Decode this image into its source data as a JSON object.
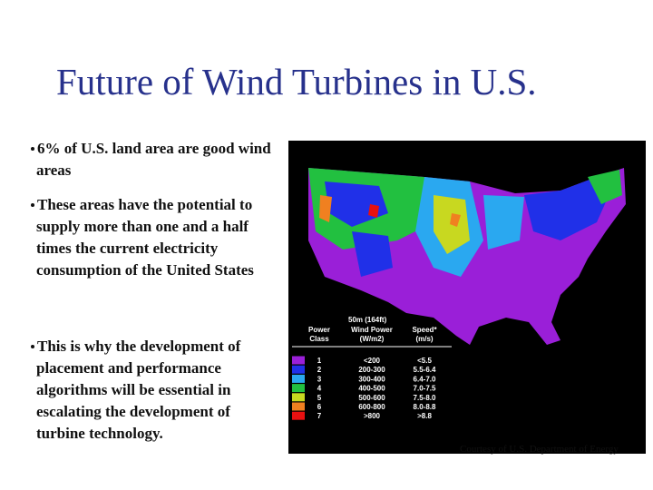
{
  "title": "Future of Wind Turbines in U.S.",
  "bullets": [
    "6% of U.S. land area are good wind areas",
    "These areas have the potential to supply more than one and a half times the current electricity consumption of the United States",
    "This is why the development of placement and performance algorithms will be essential in escalating the development of turbine technology."
  ],
  "map": {
    "legend": {
      "heading": "50m (164ft)",
      "columns": [
        [
          "Power",
          "Class"
        ],
        [
          "Wind Power",
          "(W/m2)"
        ],
        [
          "Speed*",
          "(m/s)"
        ]
      ],
      "rows": [
        {
          "class": "1",
          "power": "<200",
          "speed": "<5.5",
          "color": "#9a1fd8"
        },
        {
          "class": "2",
          "power": "200-300",
          "speed": "5.5-6.4",
          "color": "#2030e8"
        },
        {
          "class": "3",
          "power": "300-400",
          "speed": "6.4-7.0",
          "color": "#2aa8f0"
        },
        {
          "class": "4",
          "power": "400-500",
          "speed": "7.0-7.5",
          "color": "#22c040"
        },
        {
          "class": "5",
          "power": "500-600",
          "speed": "7.5-8.0",
          "color": "#c8d820"
        },
        {
          "class": "6",
          "power": "600-800",
          "speed": "8.0-8.8",
          "color": "#f08020"
        },
        {
          "class": "7",
          "power": ">800",
          "speed": ">8.8",
          "color": "#e81010"
        }
      ]
    }
  },
  "caption": "Courtesy of U.S. Department of Energy"
}
